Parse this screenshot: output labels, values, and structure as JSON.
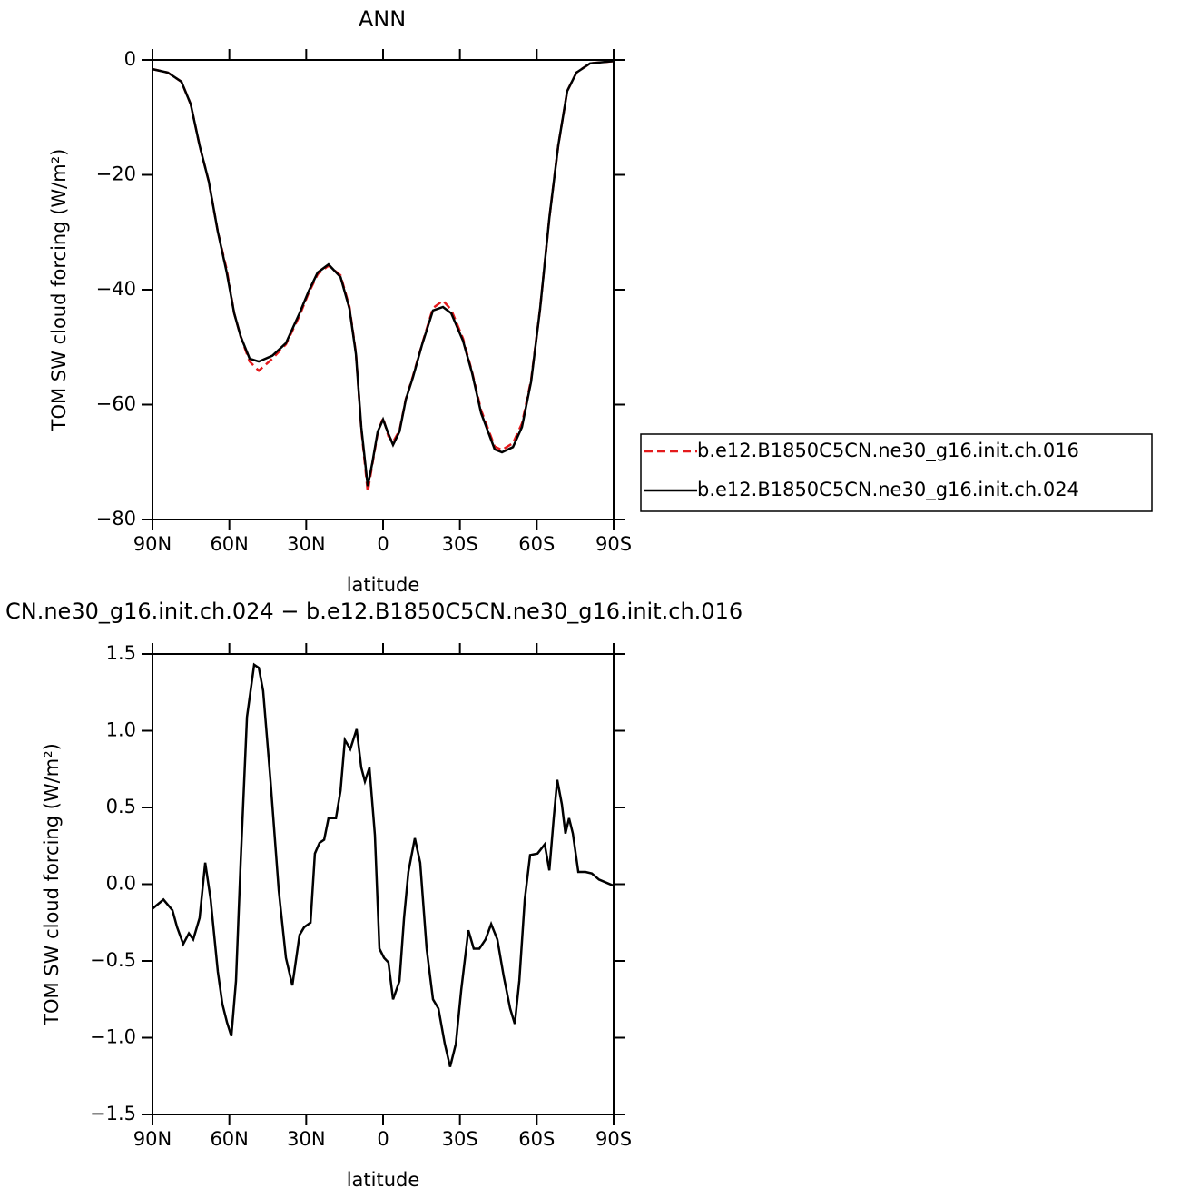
{
  "chart_data": [
    {
      "type": "line",
      "title": "ANN",
      "x_label": "latitude",
      "y_label": "TOM SW cloud forcing (W/m²)",
      "xlim": [
        90,
        -90
      ],
      "xticks": [
        {
          "value": 90,
          "label": "90N"
        },
        {
          "value": 60,
          "label": "60N"
        },
        {
          "value": 30,
          "label": "30N"
        },
        0,
        {
          "value": -30,
          "label": "30S"
        },
        {
          "value": -60,
          "label": "60S"
        },
        {
          "value": -90,
          "label": "90S"
        }
      ],
      "ylim": [
        -80,
        0
      ],
      "yticks": [
        0,
        {
          "value": -20,
          "label": "−20"
        },
        {
          "value": -40,
          "label": "−40"
        },
        {
          "value": -60,
          "label": "−60"
        },
        {
          "value": -80,
          "label": "−80"
        }
      ],
      "x": [
        90,
        84,
        78.7,
        75.1,
        71.6,
        68,
        64.5,
        61,
        58.1,
        55.6,
        52.1,
        48.5,
        43.2,
        37.9,
        32.6,
        29,
        25.5,
        21.3,
        16.6,
        13.1,
        10.6,
        8.5,
        6,
        4.2,
        2.1,
        0,
        -2.1,
        -3.9,
        -6.4,
        -8.9,
        -11.7,
        -15.2,
        -19.5,
        -23.4,
        -26.6,
        -31.2,
        -34.7,
        -38.3,
        -43.6,
        -46.4,
        -50.7,
        -54.2,
        -57.8,
        -61.3,
        -64.9,
        -68.4,
        -71.9,
        -75.5,
        -80.8,
        -90
      ],
      "series": [
        {
          "name": "b.e12.B1850C5CN.ne30_g16.init.ch.016",
          "color": "#e41a1c",
          "dash": true,
          "values": [
            -1.6,
            -2.2,
            -3.8,
            -7.7,
            -14.9,
            -21.2,
            -29.9,
            -36.5,
            -44.1,
            -48.1,
            -52.5,
            -54.1,
            -52,
            -49.5,
            -44.5,
            -40.5,
            -37.3,
            -35.8,
            -37.5,
            -43,
            -51,
            -64.2,
            -75.2,
            -70.5,
            -64.9,
            -62.3,
            -65.5,
            -66.5,
            -64.5,
            -59,
            -55,
            -49.5,
            -43.2,
            -41.9,
            -43.5,
            -48.5,
            -54.2,
            -61,
            -67.3,
            -67.9,
            -66.7,
            -63.3,
            -55.7,
            -43.3,
            -27.5,
            -14.9,
            -5.4,
            -2.2,
            -0.6,
            -0.2
          ]
        },
        {
          "name": "b.e12.B1850C5CN.ne30_g16.init.ch.024",
          "color": "#000000",
          "dash": false,
          "values": [
            -1.6,
            -2.2,
            -3.8,
            -7.7,
            -14.9,
            -21.2,
            -29.9,
            -37,
            -44.1,
            -48.1,
            -52,
            -52.5,
            -51.5,
            -49.3,
            -44.1,
            -40.2,
            -37,
            -35.6,
            -37.8,
            -43.3,
            -51.2,
            -63.9,
            -74.2,
            -70.2,
            -64.7,
            -62.6,
            -65.1,
            -67,
            -64.7,
            -59.1,
            -55.2,
            -49.6,
            -43.6,
            -43,
            -44.1,
            -48.9,
            -54.4,
            -61.5,
            -67.8,
            -68.3,
            -67.4,
            -63.9,
            -56,
            -43.3,
            -27.5,
            -14.9,
            -5.4,
            -2.2,
            -0.6,
            -0.2
          ]
        }
      ]
    },
    {
      "type": "line",
      "title": "CN.ne30_g16.init.ch.024 − b.e12.B1850C5CN.ne30_g16.init.ch.016",
      "x_label": "latitude",
      "y_label": "TOM SW cloud forcing (W/m²)",
      "xlim": [
        90,
        -90
      ],
      "xticks": [
        {
          "value": 90,
          "label": "90N"
        },
        {
          "value": 60,
          "label": "60N"
        },
        {
          "value": 30,
          "label": "30N"
        },
        0,
        {
          "value": -30,
          "label": "30S"
        },
        {
          "value": -60,
          "label": "60S"
        },
        {
          "value": -90,
          "label": "90S"
        }
      ],
      "ylim": [
        -1.5,
        1.5
      ],
      "yticks": [
        1.5,
        {
          "value": 1,
          "label": "1.0"
        },
        0.5,
        {
          "value": 0,
          "label": "0.0"
        },
        {
          "value": -0.5,
          "label": "−0.5"
        },
        {
          "value": -1,
          "label": "−1.0"
        },
        {
          "value": -1.5,
          "label": "−1.5"
        }
      ],
      "x": [
        90,
        85.7,
        82.2,
        80.4,
        78,
        75.8,
        74.1,
        71.6,
        69.4,
        67.3,
        64.5,
        62.7,
        60.9,
        59.2,
        57.4,
        55.6,
        53.1,
        50.3,
        48.5,
        46.8,
        43.9,
        40.7,
        37.9,
        35.4,
        32.6,
        30.8,
        28.3,
        26.6,
        24.8,
        23,
        21.3,
        18.4,
        16.6,
        14.9,
        12.8,
        10.3,
        8.5,
        7.1,
        5.3,
        3.2,
        1.4,
        -0.4,
        -2.1,
        -3.9,
        -6.4,
        -8.2,
        -9.9,
        -12.4,
        -14.5,
        -17,
        -19.5,
        -21.6,
        -24.1,
        -26.2,
        -28.4,
        -30.5,
        -33.3,
        -35.4,
        -37.6,
        -40,
        -42.2,
        -44.6,
        -47.1,
        -49.6,
        -51.4,
        -53.2,
        -55.3,
        -57.4,
        -60.3,
        -63.1,
        -64.9,
        -66.6,
        -68,
        -69.8,
        -71.2,
        -72.6,
        -74.1,
        -76.2,
        -79,
        -81.5,
        -84.3,
        -90
      ],
      "series": [
        {
          "color": "#000000",
          "dash": false,
          "values": [
            -0.16,
            -0.1,
            -0.17,
            -0.28,
            -0.39,
            -0.32,
            -0.36,
            -0.22,
            0.14,
            -0.1,
            -0.57,
            -0.78,
            -0.9,
            -0.99,
            -0.63,
            0.14,
            1.09,
            1.43,
            1.41,
            1.26,
            0.67,
            -0.04,
            -0.48,
            -0.66,
            -0.33,
            -0.28,
            -0.25,
            0.2,
            0.27,
            0.29,
            0.43,
            0.43,
            0.61,
            0.94,
            0.88,
            1.01,
            0.76,
            0.67,
            0.76,
            0.32,
            -0.42,
            -0.48,
            -0.51,
            -0.75,
            -0.63,
            -0.22,
            0.08,
            0.3,
            0.14,
            -0.42,
            -0.75,
            -0.81,
            -1.04,
            -1.19,
            -1.04,
            -0.69,
            -0.3,
            -0.42,
            -0.42,
            -0.36,
            -0.26,
            -0.36,
            -0.6,
            -0.81,
            -0.91,
            -0.63,
            -0.1,
            0.19,
            0.2,
            0.26,
            0.09,
            0.43,
            0.68,
            0.52,
            0.33,
            0.43,
            0.33,
            0.08,
            0.08,
            0.07,
            0.03,
            -0.01
          ]
        }
      ]
    }
  ]
}
